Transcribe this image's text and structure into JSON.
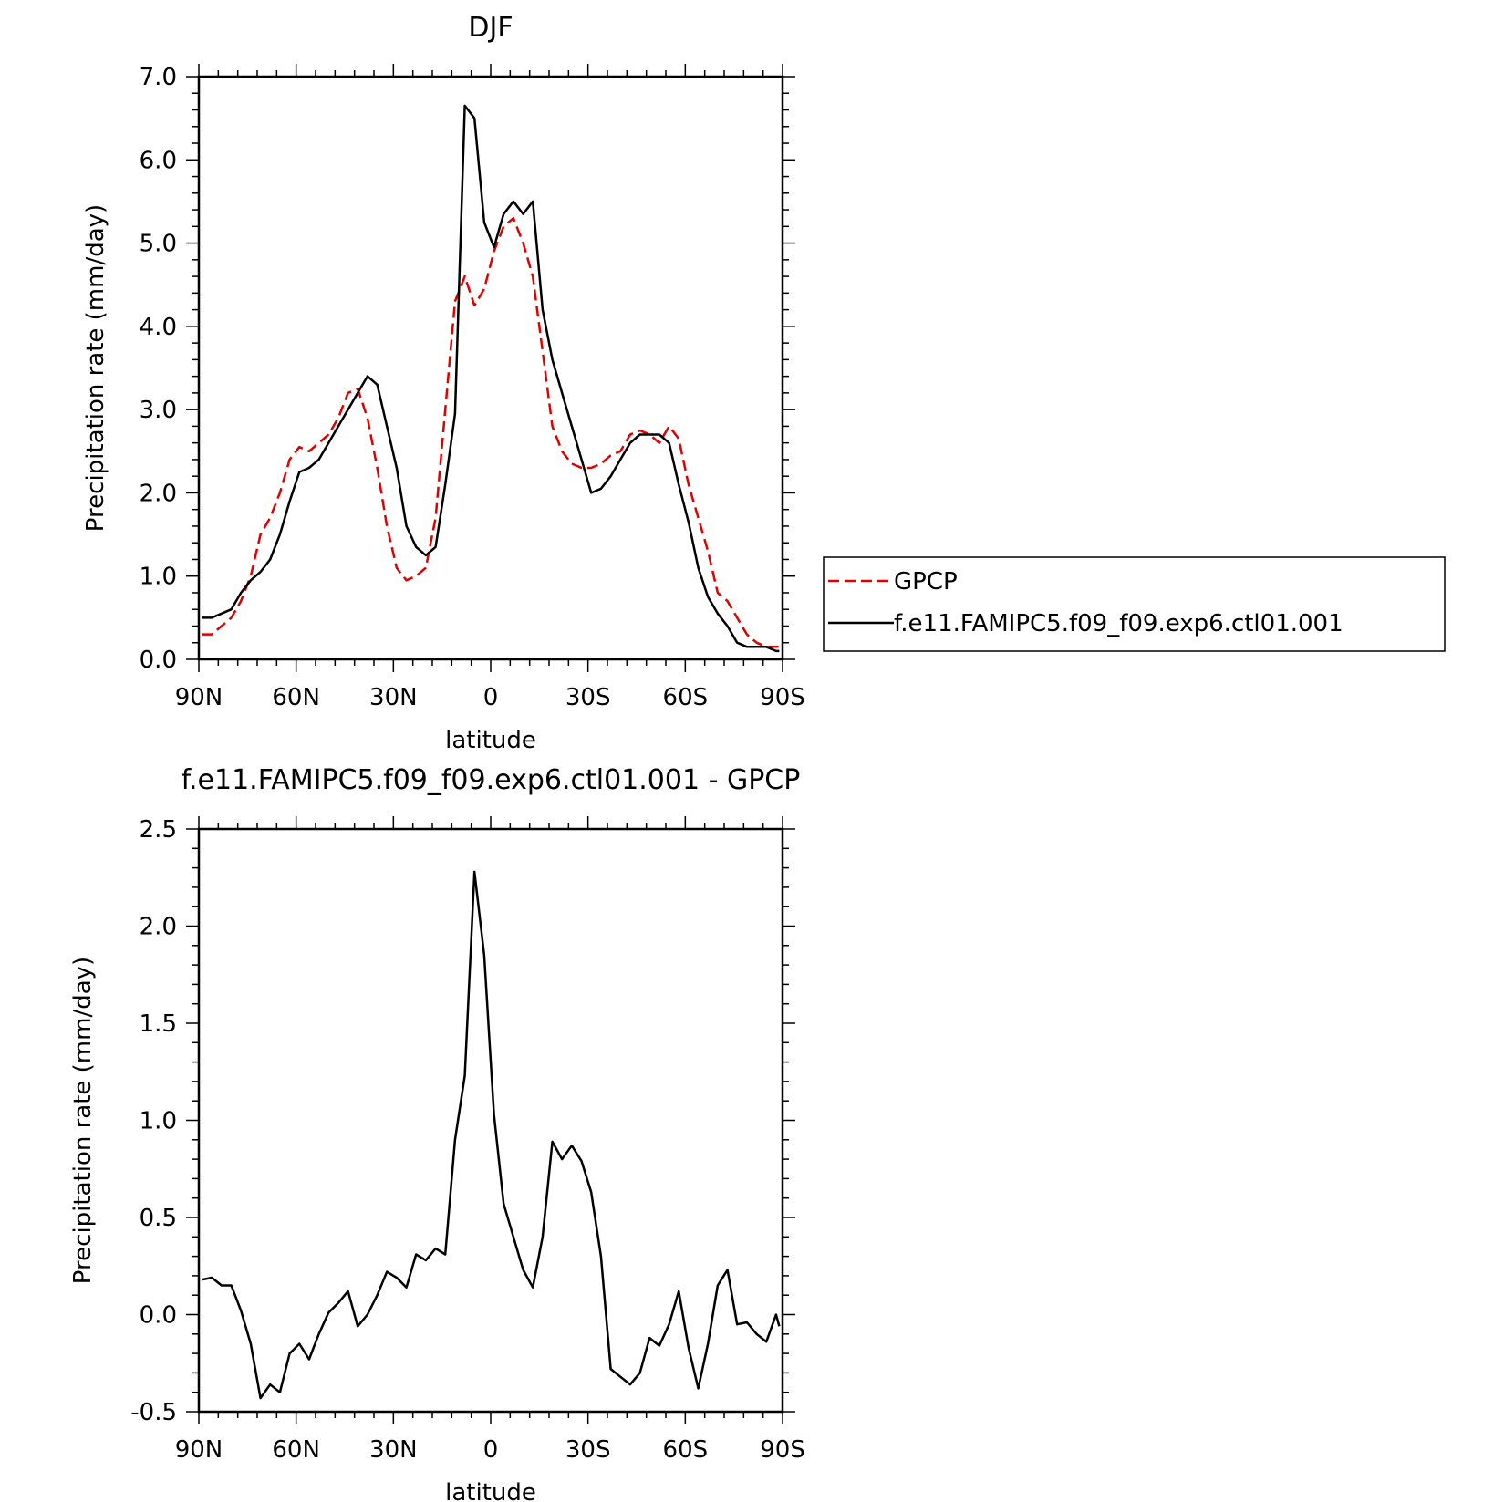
{
  "chart_data": [
    {
      "type": "line",
      "title": "DJF",
      "xlabel": "latitude",
      "ylabel": "Precipitation rate (mm/day)",
      "xlim": [
        -90,
        90
      ],
      "ylim": [
        0,
        7
      ],
      "x_tick_values": [
        -90,
        -60,
        -30,
        0,
        30,
        60,
        90
      ],
      "x_tick_labels": [
        "90N",
        "60N",
        "30N",
        "0",
        "30S",
        "60S",
        "90S"
      ],
      "y_tick_values": [
        0,
        1,
        2,
        3,
        4,
        5,
        6,
        7
      ],
      "y_tick_labels": [
        "0.0",
        "1.0",
        "2.0",
        "3.0",
        "4.0",
        "5.0",
        "6.0",
        "7.0"
      ],
      "legend_position": "right",
      "series": [
        {
          "name": "GPCP",
          "color": "#e00000",
          "dash": "dashed",
          "x": [
            -89,
            -86,
            -83,
            -80,
            -77,
            -74,
            -71,
            -68,
            -65,
            -62,
            -59,
            -56,
            -53,
            -50,
            -47,
            -44,
            -41,
            -38,
            -35,
            -32,
            -29,
            -26,
            -23,
            -20,
            -17,
            -14,
            -11,
            -8,
            -5,
            -2,
            1,
            4,
            7,
            10,
            13,
            16,
            19,
            22,
            25,
            28,
            31,
            34,
            37,
            40,
            43,
            46,
            49,
            52,
            55,
            58,
            61,
            64,
            67,
            70,
            73,
            76,
            79,
            82,
            85,
            88,
            89
          ],
          "y": [
            0.3,
            0.3,
            0.4,
            0.5,
            0.7,
            1.0,
            1.5,
            1.7,
            2.0,
            2.4,
            2.55,
            2.5,
            2.6,
            2.7,
            2.9,
            3.2,
            3.25,
            2.9,
            2.3,
            1.6,
            1.1,
            0.95,
            1.0,
            1.1,
            1.7,
            3.0,
            4.3,
            4.6,
            4.25,
            4.45,
            4.9,
            5.2,
            5.3,
            5.0,
            4.6,
            3.7,
            2.8,
            2.5,
            2.35,
            2.3,
            2.3,
            2.35,
            2.45,
            2.5,
            2.7,
            2.75,
            2.7,
            2.6,
            2.8,
            2.65,
            2.1,
            1.7,
            1.3,
            0.8,
            0.7,
            0.5,
            0.3,
            0.2,
            0.15,
            0.15,
            0.15
          ]
        },
        {
          "name": "f.e11.FAMIPC5.f09_f09.exp6.ctl01.001",
          "color": "#000000",
          "dash": "solid",
          "x": [
            -89,
            -86,
            -83,
            -80,
            -77,
            -74,
            -71,
            -68,
            -65,
            -62,
            -59,
            -56,
            -53,
            -50,
            -47,
            -44,
            -41,
            -38,
            -35,
            -32,
            -29,
            -26,
            -23,
            -20,
            -17,
            -14,
            -11,
            -8,
            -5,
            -2,
            1,
            4,
            7,
            10,
            13,
            16,
            19,
            22,
            25,
            28,
            31,
            34,
            37,
            40,
            43,
            46,
            49,
            52,
            55,
            58,
            61,
            64,
            67,
            70,
            73,
            76,
            79,
            82,
            85,
            88,
            89
          ],
          "y": [
            0.5,
            0.5,
            0.55,
            0.6,
            0.8,
            0.95,
            1.05,
            1.2,
            1.5,
            1.9,
            2.25,
            2.3,
            2.4,
            2.6,
            2.8,
            3.0,
            3.2,
            3.4,
            3.3,
            2.8,
            2.3,
            1.6,
            1.35,
            1.25,
            1.35,
            2.1,
            2.95,
            6.65,
            6.5,
            5.25,
            4.95,
            5.35,
            5.5,
            5.35,
            5.5,
            4.2,
            3.6,
            3.2,
            2.8,
            2.4,
            2.0,
            2.05,
            2.2,
            2.4,
            2.6,
            2.7,
            2.7,
            2.7,
            2.6,
            2.1,
            1.65,
            1.1,
            0.75,
            0.55,
            0.4,
            0.2,
            0.15,
            0.15,
            0.15,
            0.1,
            0.1
          ]
        }
      ]
    },
    {
      "type": "line",
      "title": "f.e11.FAMIPC5.f09_f09.exp6.ctl01.001 - GPCP",
      "xlabel": "latitude",
      "ylabel": "Precipitation rate (mm/day)",
      "xlim": [
        -90,
        90
      ],
      "ylim": [
        -0.5,
        2.5
      ],
      "x_tick_values": [
        -90,
        -60,
        -30,
        0,
        30,
        60,
        90
      ],
      "x_tick_labels": [
        "90N",
        "60N",
        "30N",
        "0",
        "30S",
        "60S",
        "90S"
      ],
      "y_tick_values": [
        -0.5,
        0,
        0.5,
        1,
        1.5,
        2,
        2.5
      ],
      "y_tick_labels": [
        "-0.5",
        "0.0",
        "0.5",
        "1.0",
        "1.5",
        "2.0",
        "2.5"
      ],
      "series": [
        {
          "color": "#000000",
          "dash": "solid",
          "x": [
            -89,
            -86,
            -83,
            -80,
            -77,
            -74,
            -71,
            -68,
            -65,
            -62,
            -59,
            -56,
            -53,
            -50,
            -47,
            -44,
            -41,
            -38,
            -35,
            -32,
            -29,
            -26,
            -23,
            -20,
            -17,
            -14,
            -11,
            -8,
            -5,
            -2,
            1,
            4,
            7,
            10,
            13,
            16,
            19,
            22,
            25,
            28,
            31,
            34,
            37,
            40,
            43,
            46,
            49,
            52,
            55,
            58,
            61,
            64,
            67,
            70,
            73,
            76,
            79,
            82,
            85,
            88,
            89
          ],
          "y": [
            0.18,
            0.19,
            0.15,
            0.15,
            0.02,
            -0.15,
            -0.43,
            -0.36,
            -0.4,
            -0.2,
            -0.15,
            -0.23,
            -0.1,
            0.01,
            0.06,
            0.12,
            -0.06,
            0.0,
            0.1,
            0.22,
            0.19,
            0.14,
            0.31,
            0.28,
            0.34,
            0.31,
            0.9,
            1.23,
            2.28,
            1.85,
            1.03,
            0.57,
            0.4,
            0.23,
            0.14,
            0.4,
            0.89,
            0.8,
            0.87,
            0.79,
            0.63,
            0.3,
            -0.28,
            -0.32,
            -0.36,
            -0.3,
            -0.12,
            -0.16,
            -0.05,
            0.12,
            -0.17,
            -0.38,
            -0.15,
            0.15,
            0.23,
            -0.05,
            -0.04,
            -0.1,
            -0.14,
            0.0,
            -0.06
          ]
        }
      ]
    }
  ]
}
